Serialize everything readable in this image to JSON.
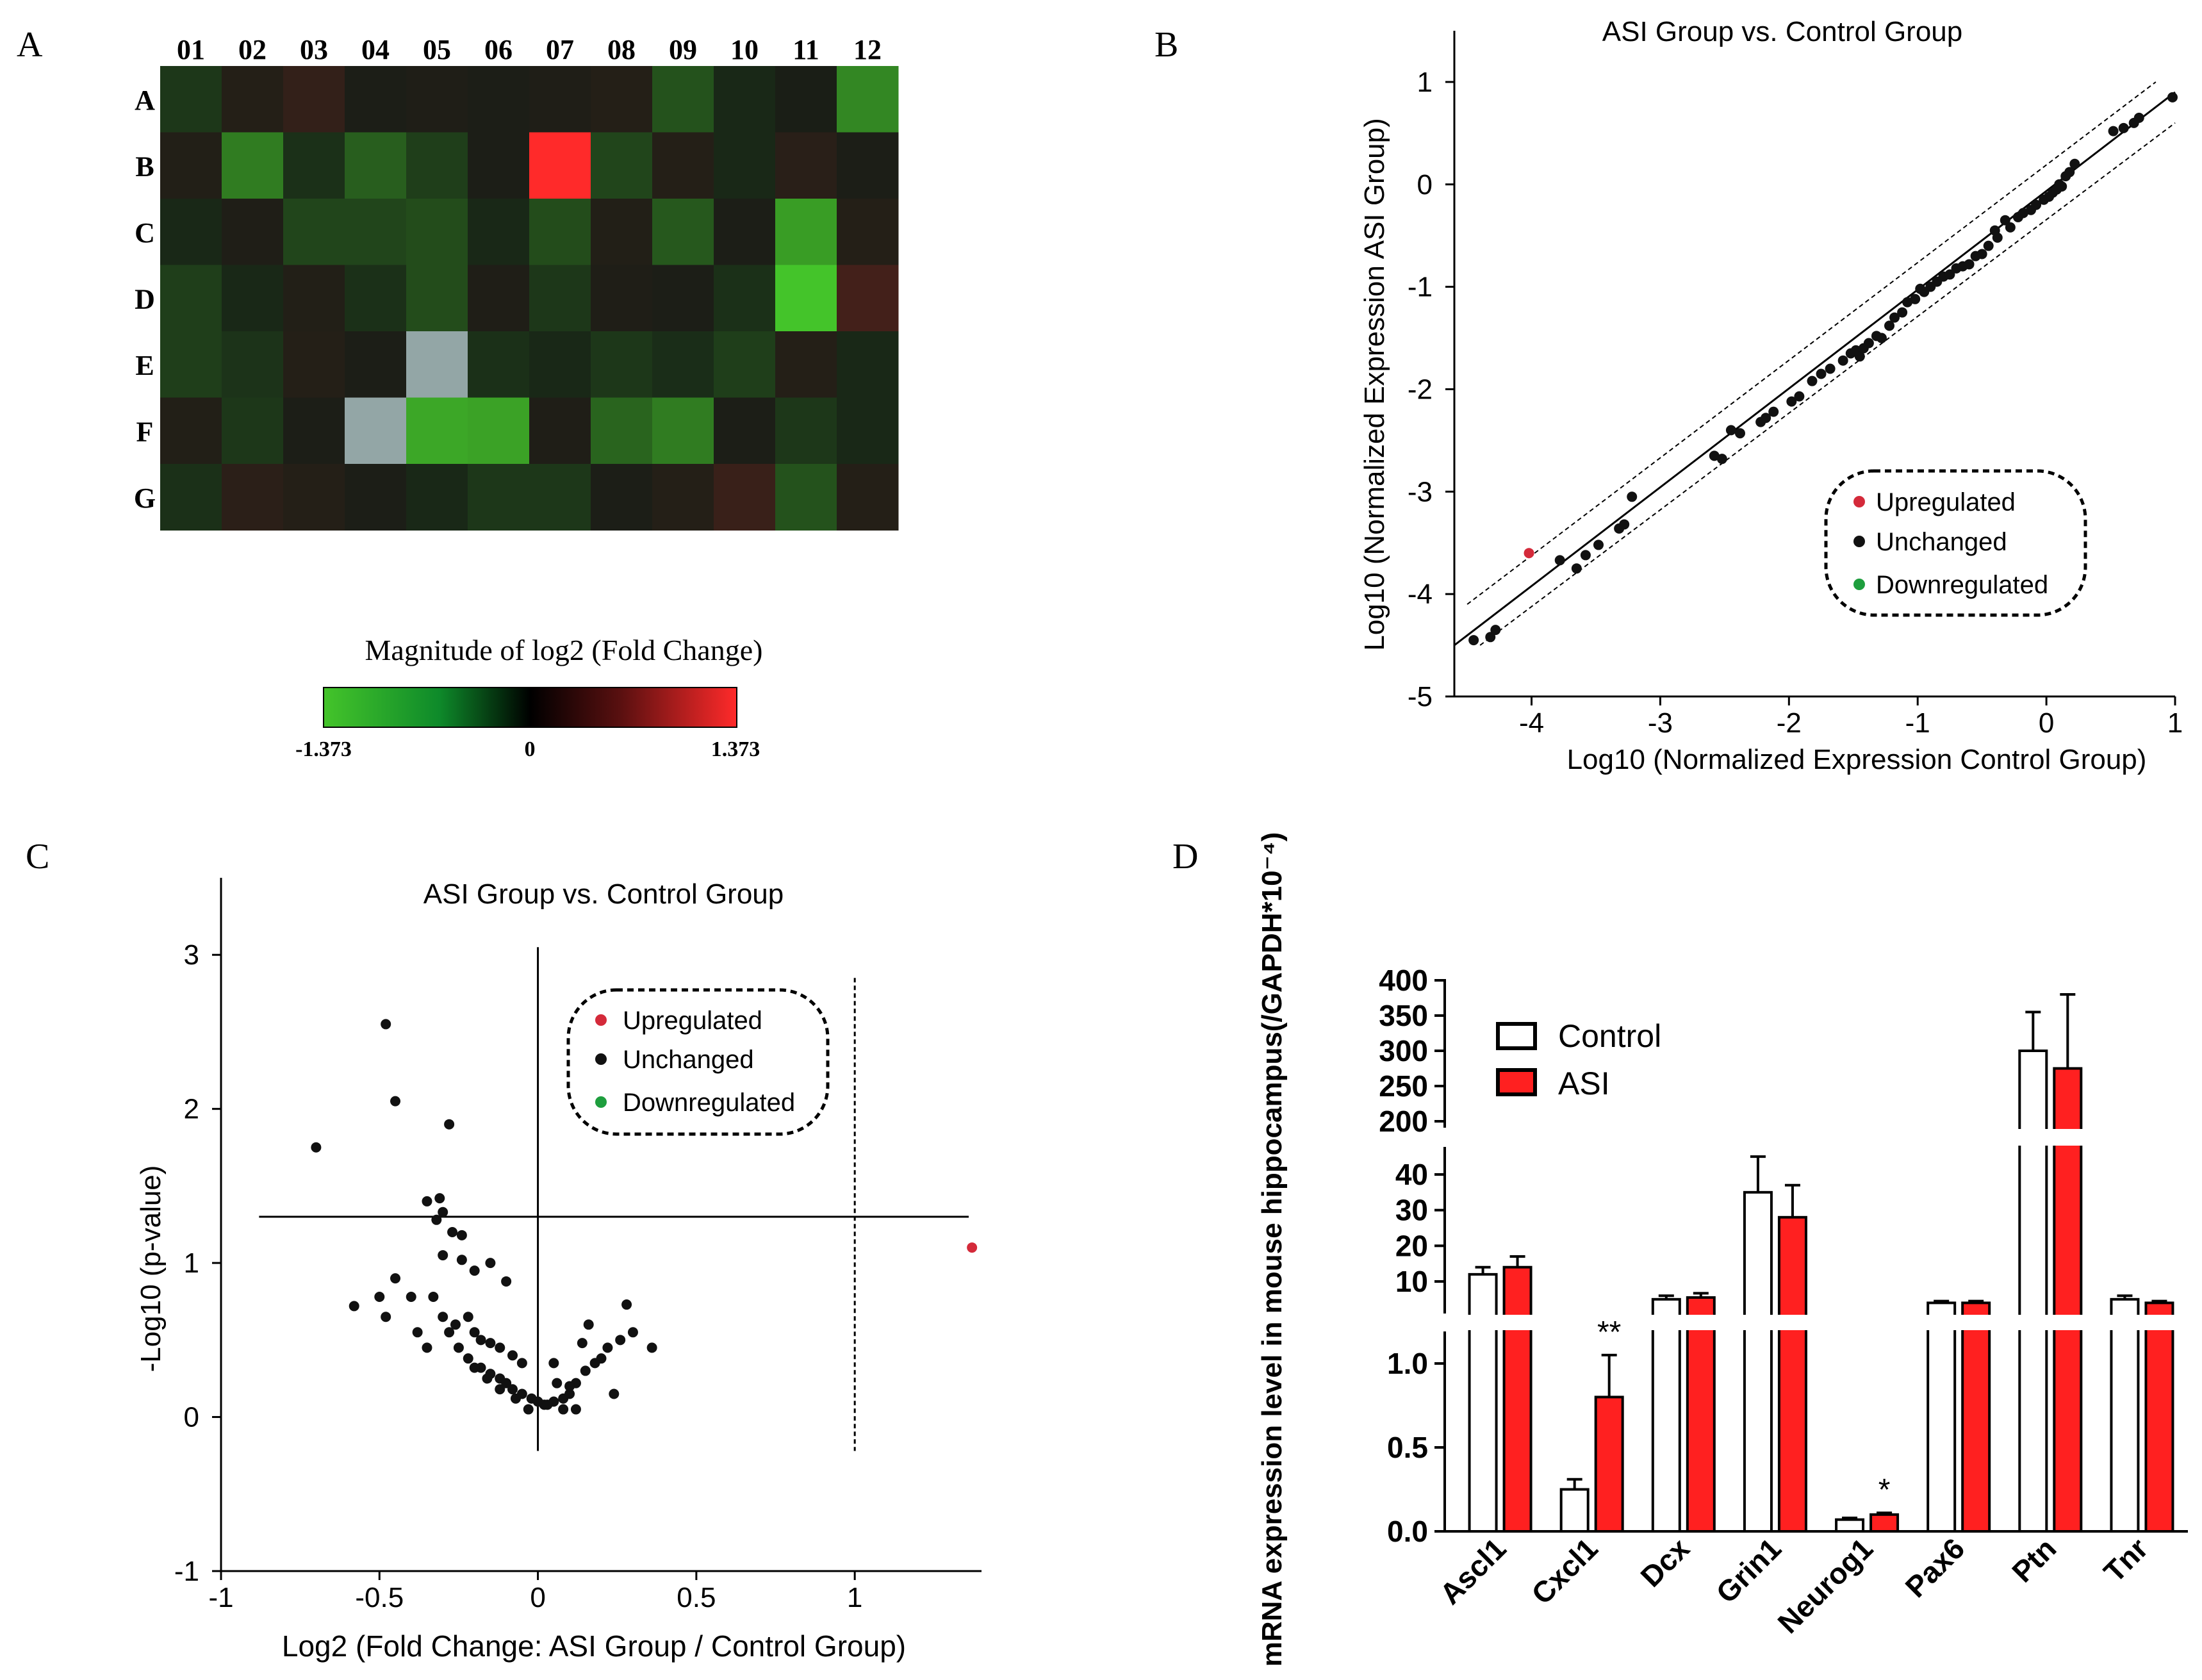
{
  "panel_labels": [
    "A",
    "B",
    "C",
    "D"
  ],
  "chart_data": [
    {
      "type": "heatmap",
      "panel": "A",
      "columns": [
        "01",
        "02",
        "03",
        "04",
        "05",
        "06",
        "07",
        "08",
        "09",
        "10",
        "11",
        "12"
      ],
      "rows": [
        "A",
        "B",
        "C",
        "D",
        "E",
        "F",
        "G"
      ],
      "values": [
        [
          -0.15,
          0.05,
          0.12,
          0.02,
          0.03,
          0.02,
          0.03,
          0.05,
          -0.35,
          -0.05,
          0.01,
          -0.8
        ],
        [
          0.04,
          -0.7,
          -0.1,
          -0.45,
          -0.2,
          0.02,
          1.373,
          -0.25,
          0.05,
          -0.05,
          0.07,
          0.02
        ],
        [
          -0.05,
          0.03,
          -0.25,
          -0.25,
          -0.3,
          -0.05,
          -0.3,
          0.04,
          -0.4,
          0.02,
          -1.0,
          0.05
        ],
        [
          -0.2,
          -0.05,
          0.04,
          -0.1,
          -0.3,
          0.03,
          -0.15,
          0.03,
          0.02,
          -0.1,
          -1.373,
          0.2
        ],
        [
          -0.2,
          -0.12,
          0.05,
          0.02,
          null,
          -0.1,
          -0.05,
          -0.15,
          -0.08,
          -0.2,
          0.05,
          -0.05
        ],
        [
          0.04,
          -0.15,
          0.02,
          null,
          -1.1,
          -1.05,
          0.03,
          -0.5,
          -0.7,
          0.02,
          -0.15,
          -0.05
        ],
        [
          -0.1,
          0.08,
          0.05,
          0.02,
          -0.05,
          -0.15,
          -0.15,
          0.02,
          0.05,
          0.15,
          -0.35,
          0.05
        ]
      ],
      "legend_title": "Magnitude of log2 (Fold Change)",
      "legend_min": "-1.373",
      "legend_mid": "0",
      "legend_max": "1.373",
      "colors": {
        "low": "#44c42a",
        "mid": "#000000",
        "high": "#ff2a2a",
        "undefined": "#93a6a6"
      }
    },
    {
      "type": "scatter",
      "panel": "B",
      "title": "ASI Group vs. Control Group",
      "xlabel": "Log10 (Normalized Expression Control Group)",
      "ylabel": "Log10 (Normalized Expression ASI Group)",
      "xlim": [
        -4.6,
        1
      ],
      "ylim": [
        -5,
        1.5
      ],
      "xticks": [
        -4,
        -3,
        -2,
        -1,
        0,
        1
      ],
      "yticks": [
        -5,
        -4,
        -3,
        -2,
        -1,
        0,
        1
      ],
      "x_tick_labels": [
        "-4",
        "-3",
        "-2",
        "-1",
        "0",
        "1"
      ],
      "y_tick_labels": [
        "-5",
        "-4",
        "-3",
        "-2",
        "-1",
        "0",
        "1"
      ],
      "threshold_lines": {
        "center": [
          [
            -4.6,
            -4.5
          ],
          [
            1,
            0.9
          ]
        ],
        "upper": [
          [
            -4.5,
            -4.1
          ],
          [
            0.85,
            1.0
          ]
        ],
        "lower": [
          [
            -4.4,
            -4.5
          ],
          [
            1.0,
            0.6
          ]
        ]
      },
      "legend": [
        "Upregulated",
        "Unchanged",
        "Downregulated"
      ],
      "legend_colors": [
        "#d42a3a",
        "#111111",
        "#1e9e3e"
      ],
      "series": [
        {
          "name": "Upregulated",
          "color": "#d42a3a",
          "points": [
            [
              -4.02,
              -3.6
            ]
          ]
        },
        {
          "name": "Unchanged",
          "color": "#111111",
          "points": [
            [
              -4.45,
              -4.45
            ],
            [
              -4.32,
              -4.42
            ],
            [
              -4.28,
              -4.35
            ],
            [
              -3.78,
              -3.67
            ],
            [
              -3.65,
              -3.75
            ],
            [
              -3.58,
              -3.62
            ],
            [
              -3.48,
              -3.52
            ],
            [
              -3.32,
              -3.36
            ],
            [
              -3.28,
              -3.32
            ],
            [
              -3.22,
              -3.05
            ],
            [
              -2.58,
              -2.65
            ],
            [
              -2.52,
              -2.68
            ],
            [
              -2.45,
              -2.4
            ],
            [
              -2.38,
              -2.43
            ],
            [
              -2.22,
              -2.32
            ],
            [
              -2.18,
              -2.28
            ],
            [
              -2.12,
              -2.22
            ],
            [
              -1.98,
              -2.12
            ],
            [
              -1.92,
              -2.07
            ],
            [
              -1.82,
              -1.92
            ],
            [
              -1.75,
              -1.85
            ],
            [
              -1.68,
              -1.8
            ],
            [
              -1.58,
              -1.72
            ],
            [
              -1.52,
              -1.65
            ],
            [
              -1.48,
              -1.62
            ],
            [
              -1.45,
              -1.68
            ],
            [
              -1.42,
              -1.6
            ],
            [
              -1.38,
              -1.55
            ],
            [
              -1.32,
              -1.48
            ],
            [
              -1.28,
              -1.5
            ],
            [
              -1.22,
              -1.38
            ],
            [
              -1.18,
              -1.3
            ],
            [
              -1.12,
              -1.25
            ],
            [
              -1.08,
              -1.15
            ],
            [
              -1.02,
              -1.12
            ],
            [
              -0.98,
              -1.02
            ],
            [
              -0.95,
              -1.05
            ],
            [
              -0.9,
              -1.0
            ],
            [
              -0.85,
              -0.95
            ],
            [
              -0.8,
              -0.9
            ],
            [
              -0.75,
              -0.88
            ],
            [
              -0.7,
              -0.82
            ],
            [
              -0.65,
              -0.8
            ],
            [
              -0.6,
              -0.78
            ],
            [
              -0.55,
              -0.7
            ],
            [
              -0.5,
              -0.68
            ],
            [
              -0.45,
              -0.6
            ],
            [
              -0.4,
              -0.45
            ],
            [
              -0.38,
              -0.52
            ],
            [
              -0.32,
              -0.35
            ],
            [
              -0.28,
              -0.42
            ],
            [
              -0.22,
              -0.32
            ],
            [
              -0.18,
              -0.28
            ],
            [
              -0.12,
              -0.25
            ],
            [
              -0.08,
              -0.2
            ],
            [
              -0.02,
              -0.15
            ],
            [
              0.02,
              -0.12
            ],
            [
              0.05,
              -0.08
            ],
            [
              0.08,
              -0.05
            ],
            [
              0.1,
              0.0
            ],
            [
              0.12,
              -0.02
            ],
            [
              0.15,
              0.08
            ],
            [
              0.18,
              0.12
            ],
            [
              0.22,
              0.2
            ],
            [
              0.52,
              0.52
            ],
            [
              0.6,
              0.55
            ],
            [
              0.68,
              0.6
            ],
            [
              0.72,
              0.65
            ],
            [
              0.98,
              0.85
            ]
          ]
        }
      ]
    },
    {
      "type": "scatter",
      "panel": "C",
      "title": "ASI Group vs. Control Group",
      "xlabel": "Log2 (Fold Change: ASI Group / Control Group)",
      "ylabel": "-Log10 (p-value)",
      "xlim": [
        -1,
        1.4
      ],
      "ylim": [
        -1,
        3.5
      ],
      "xticks": [
        -1,
        -0.5,
        0,
        0.5,
        1
      ],
      "yticks": [
        -1,
        0,
        1,
        2,
        3
      ],
      "x_tick_labels": [
        "-1",
        "-0.5",
        "0",
        "0.5",
        "1"
      ],
      "y_tick_labels": [
        "-1",
        "0",
        "1",
        "2",
        "3"
      ],
      "threshold_lines": {
        "horizontal_y": 1.3,
        "vertical_x": [
          0
        ],
        "dashed_x": [
          -1,
          1
        ]
      },
      "legend": [
        "Upregulated",
        "Unchanged",
        "Downregulated"
      ],
      "legend_colors": [
        "#d42a3a",
        "#111111",
        "#1e9e3e"
      ],
      "series": [
        {
          "name": "Upregulated",
          "color": "#d42a3a",
          "points": [
            [
              1.37,
              1.1
            ]
          ]
        },
        {
          "name": "Unchanged",
          "color": "#111111",
          "points": [
            [
              -0.48,
              2.55
            ],
            [
              -0.45,
              2.05
            ],
            [
              -0.28,
              1.9
            ],
            [
              -0.7,
              1.75
            ],
            [
              -0.35,
              1.4
            ],
            [
              -0.31,
              1.42
            ],
            [
              -0.3,
              1.33
            ],
            [
              -0.32,
              1.28
            ],
            [
              -0.27,
              1.2
            ],
            [
              -0.24,
              1.18
            ],
            [
              -0.3,
              1.05
            ],
            [
              -0.24,
              1.02
            ],
            [
              -0.2,
              0.95
            ],
            [
              -0.15,
              1.0
            ],
            [
              -0.1,
              0.88
            ],
            [
              -0.45,
              0.9
            ],
            [
              -0.4,
              0.78
            ],
            [
              -0.5,
              0.78
            ],
            [
              -0.58,
              0.72
            ],
            [
              -0.48,
              0.65
            ],
            [
              -0.33,
              0.78
            ],
            [
              -0.3,
              0.65
            ],
            [
              -0.26,
              0.6
            ],
            [
              -0.22,
              0.65
            ],
            [
              -0.2,
              0.55
            ],
            [
              -0.18,
              0.5
            ],
            [
              -0.15,
              0.48
            ],
            [
              -0.12,
              0.45
            ],
            [
              -0.08,
              0.4
            ],
            [
              -0.05,
              0.35
            ],
            [
              -0.28,
              0.55
            ],
            [
              -0.25,
              0.45
            ],
            [
              -0.22,
              0.38
            ],
            [
              -0.18,
              0.32
            ],
            [
              -0.15,
              0.28
            ],
            [
              -0.12,
              0.25
            ],
            [
              -0.1,
              0.22
            ],
            [
              -0.08,
              0.18
            ],
            [
              -0.05,
              0.15
            ],
            [
              -0.02,
              0.12
            ],
            [
              0.0,
              0.1
            ],
            [
              0.02,
              0.08
            ],
            [
              0.05,
              0.1
            ],
            [
              0.08,
              0.12
            ],
            [
              0.1,
              0.15
            ],
            [
              0.12,
              0.22
            ],
            [
              0.15,
              0.3
            ],
            [
              0.18,
              0.35
            ],
            [
              0.22,
              0.45
            ],
            [
              0.26,
              0.5
            ],
            [
              0.3,
              0.55
            ],
            [
              0.36,
              0.45
            ],
            [
              0.24,
              0.15
            ],
            [
              0.28,
              0.73
            ],
            [
              0.16,
              0.6
            ],
            [
              0.14,
              0.48
            ],
            [
              0.2,
              0.38
            ],
            [
              -0.38,
              0.55
            ],
            [
              -0.35,
              0.45
            ],
            [
              0.05,
              0.35
            ],
            [
              0.1,
              0.2
            ],
            [
              0.08,
              0.05
            ],
            [
              0.03,
              0.08
            ],
            [
              -0.03,
              0.05
            ],
            [
              -0.07,
              0.12
            ],
            [
              -0.12,
              0.18
            ],
            [
              -0.16,
              0.25
            ],
            [
              -0.2,
              0.32
            ],
            [
              0.12,
              0.05
            ],
            [
              0.06,
              0.22
            ]
          ]
        }
      ]
    },
    {
      "type": "bar",
      "panel": "D",
      "ylabel": "mRNA expression level in mouse hippocampus(/GAPDH*10⁻⁴)",
      "categories": [
        "Ascl1",
        "Cxcl1",
        "Dcx",
        "Grin1",
        "Neurog1",
        "Pax6",
        "Ptn",
        "Tnr"
      ],
      "series": [
        {
          "name": "Control",
          "color": "#ffffff",
          "values": [
            12,
            0.25,
            5,
            35,
            0.07,
            4,
            300,
            5
          ],
          "errors": [
            2,
            0.06,
            1,
            10,
            0.01,
            0.5,
            55,
            1
          ]
        },
        {
          "name": "ASI",
          "color": "#ff2020",
          "values": [
            14,
            0.8,
            5.5,
            28,
            0.1,
            4,
            275,
            4
          ],
          "errors": [
            3,
            0.25,
            1.2,
            9,
            0.01,
            0.5,
            105,
            0.5
          ]
        }
      ],
      "significance": [
        {
          "category": "Cxcl1",
          "label": "**"
        },
        {
          "category": "Neurog1",
          "label": "*"
        }
      ],
      "axis_segments": [
        {
          "ylim": [
            0,
            1.2
          ],
          "ticks": [
            0.0,
            0.5,
            1.0
          ],
          "tick_labels": [
            "0.0",
            "0.5",
            "1.0"
          ]
        },
        {
          "ylim": [
            1.2,
            48
          ],
          "ticks": [
            10,
            20,
            30,
            40
          ],
          "tick_labels": [
            "10",
            "20",
            "30",
            "40"
          ]
        },
        {
          "ylim": [
            195,
            400
          ],
          "ticks": [
            200,
            250,
            300,
            350,
            400
          ],
          "tick_labels": [
            "200",
            "250",
            "300",
            "350",
            "400"
          ]
        }
      ],
      "legend": [
        "Control",
        "ASI"
      ]
    }
  ]
}
